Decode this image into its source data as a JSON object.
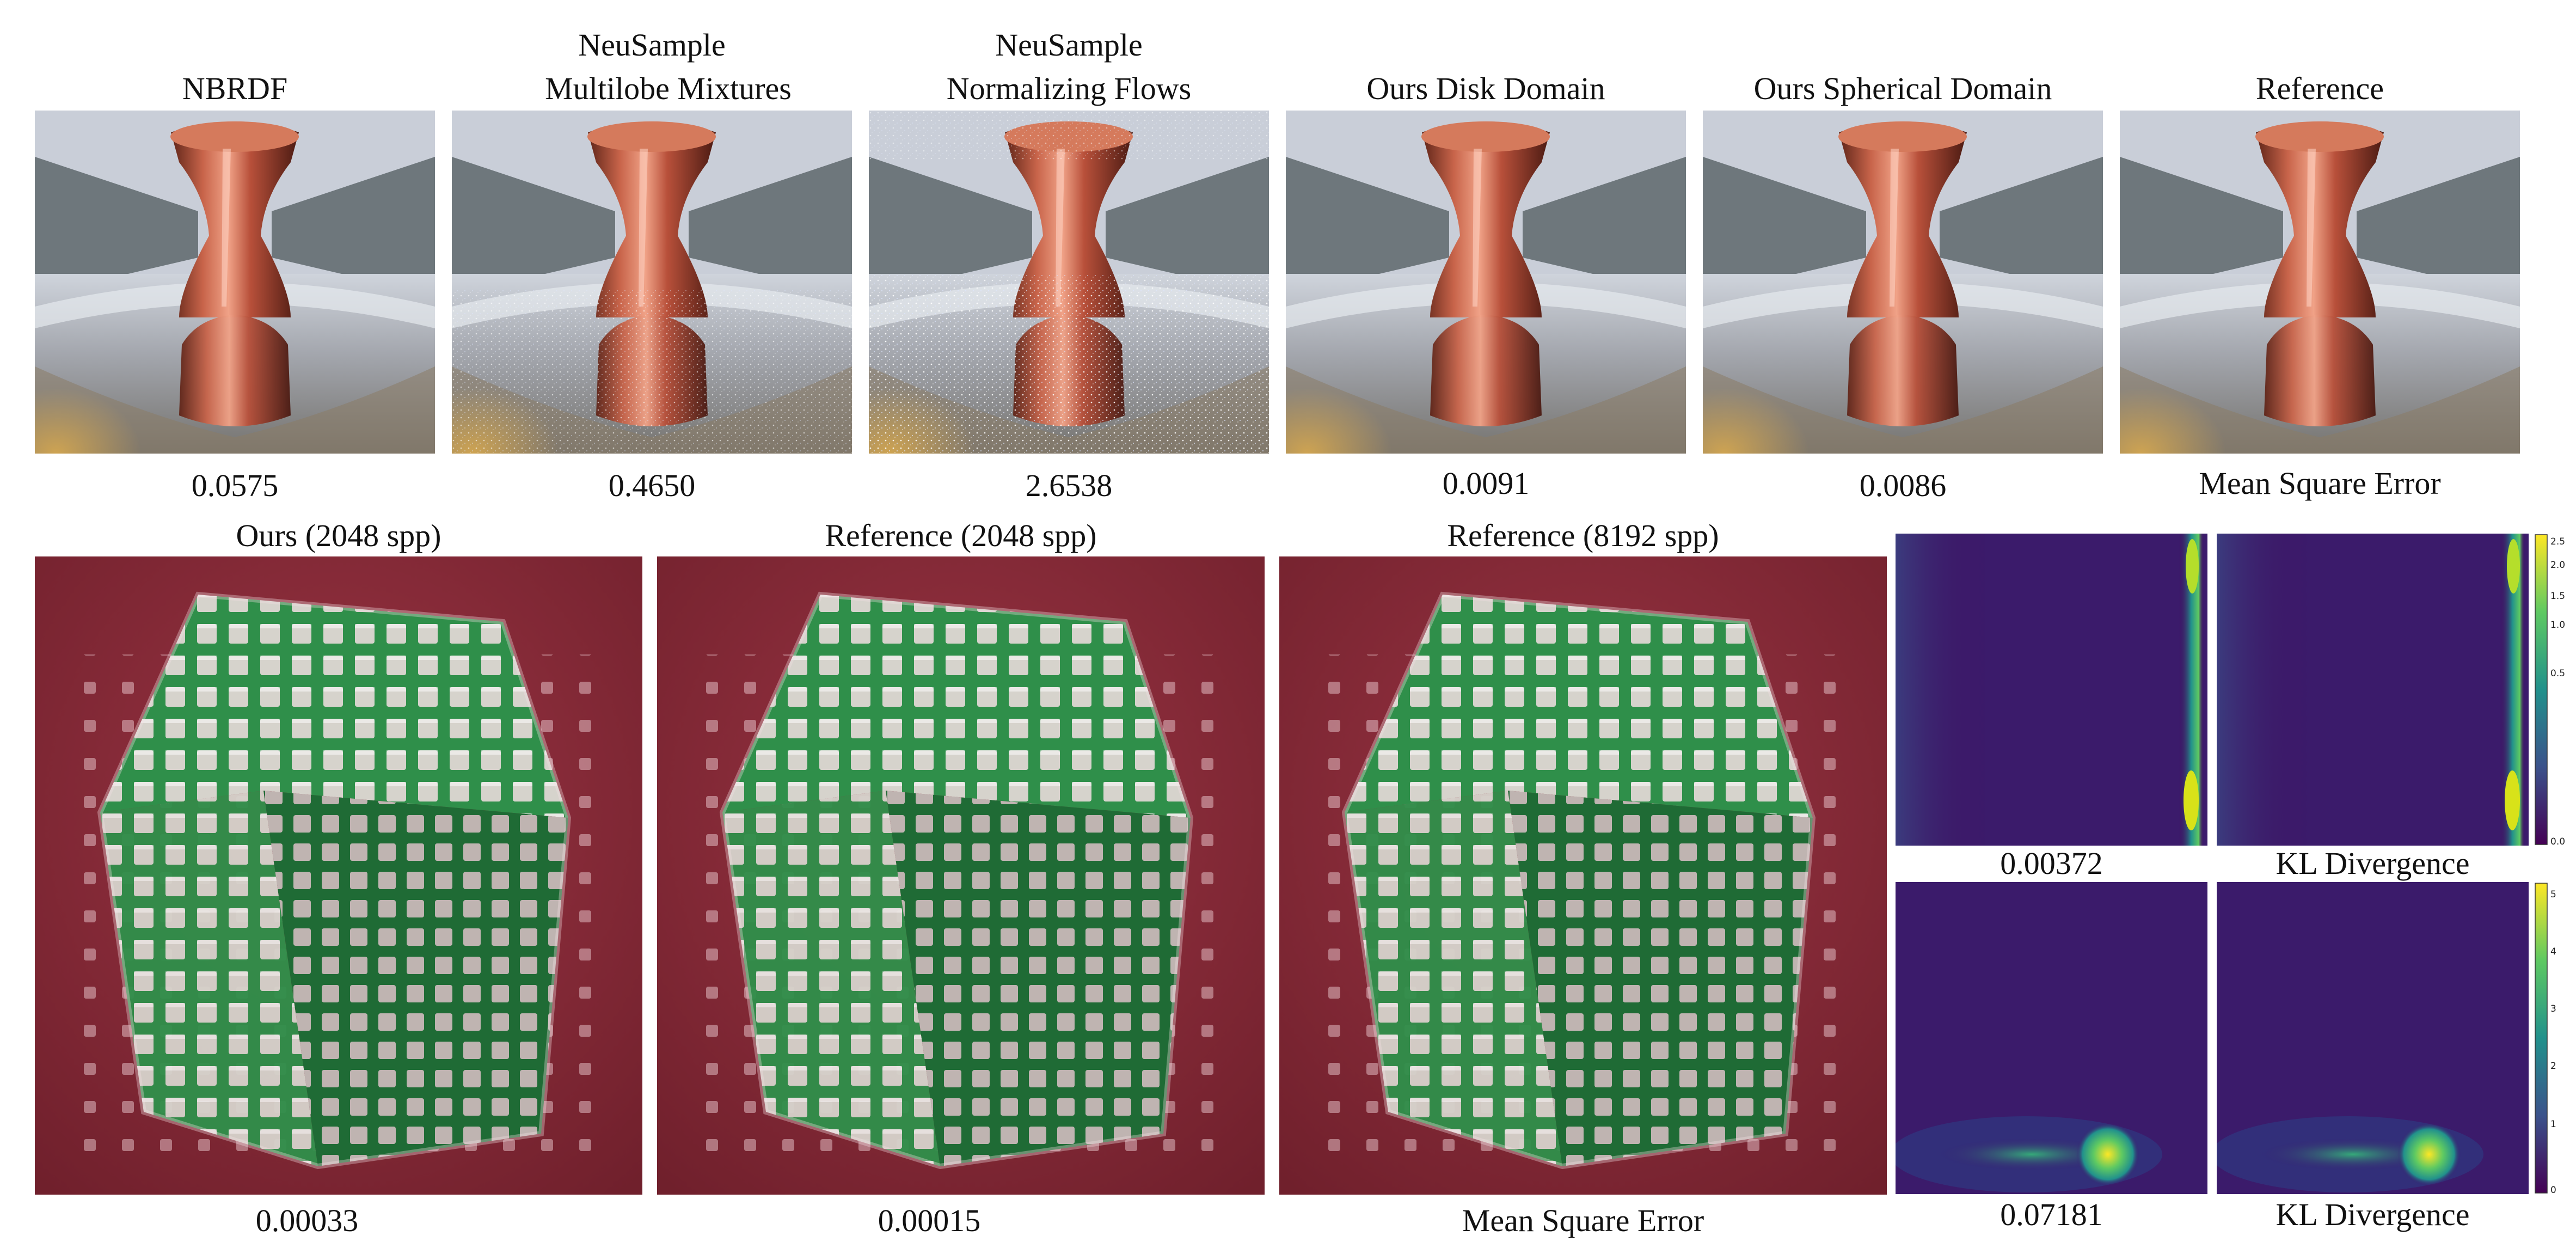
{
  "top_row": {
    "methods": [
      {
        "title_line1": "NBRDF",
        "title_line2": "",
        "metric": "0.0575"
      },
      {
        "title_line1": "NeuSample",
        "title_line2": "Multilobe Mixtures",
        "metric": "0.4650"
      },
      {
        "title_line1": "NeuSample",
        "title_line2": "Normalizing Flows",
        "metric": "2.6538"
      },
      {
        "title_line1": "Ours Disk Domain",
        "title_line2": "",
        "metric": "0.0091"
      },
      {
        "title_line1": "Ours Spherical Domain",
        "title_line2": "",
        "metric": "0.0086"
      },
      {
        "title_line1": "Reference",
        "title_line2": "",
        "metric": "Mean Square Error"
      }
    ]
  },
  "bottom_row": {
    "renders": [
      {
        "title": "Ours (2048 spp)",
        "metric": "0.00033"
      },
      {
        "title": "Reference (2048 spp)",
        "metric": "0.00015"
      },
      {
        "title": "Reference (8192 spp)",
        "metric": "Mean Square Error"
      }
    ],
    "kl_maps": {
      "upper": {
        "left_value": "0.00372",
        "right_label": "KL Divergence",
        "colorbar_ticks": [
          "2.5",
          "2.0",
          "1.5",
          "1.0",
          "0.5",
          "0.0"
        ]
      },
      "lower": {
        "left_value": "0.07181",
        "right_label": "KL Divergence",
        "colorbar_ticks": [
          "5",
          "4",
          "3",
          "2",
          "1",
          "0"
        ]
      }
    }
  },
  "colors": {
    "viridis_low": "#440154",
    "viridis_dark": "#3b1b6b",
    "viridis_mid": "#21918c",
    "viridis_high": "#fde725",
    "copper": "#c86a4a",
    "backdrop_red": "#8a2a38",
    "glass_green": "#2f8f4a"
  }
}
